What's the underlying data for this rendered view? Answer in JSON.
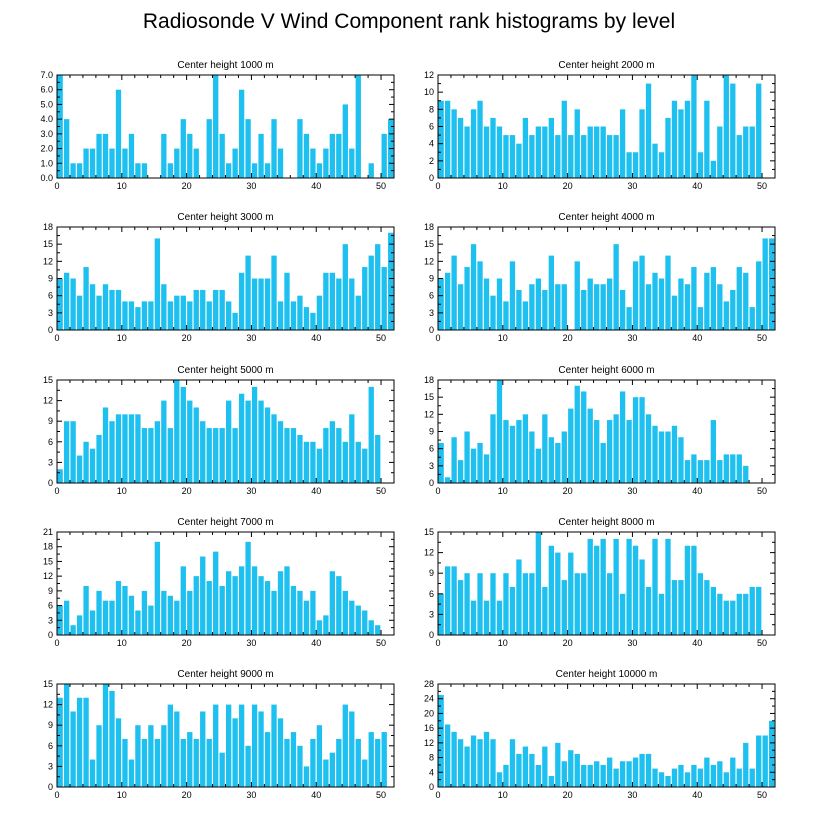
{
  "title": "Radiosonde V Wind Component rank histograms by level",
  "colors": {
    "bar": "#1ec0f0",
    "axis": "#000000"
  },
  "chart_data": [
    {
      "type": "bar",
      "title": "Center height 1000 m",
      "xlim": [
        0,
        52
      ],
      "xticks": [
        0,
        10,
        20,
        30,
        40,
        50
      ],
      "ylim": [
        0,
        7
      ],
      "yticks": [
        0.0,
        1.0,
        2.0,
        3.0,
        4.0,
        5.0,
        6.0,
        7.0
      ],
      "ytick_decimals": 1,
      "values": [
        7,
        4,
        1,
        1,
        2,
        2,
        3,
        3,
        2,
        6,
        2,
        3,
        1,
        1,
        0,
        0,
        3,
        1,
        2,
        4,
        3,
        2,
        0,
        4,
        7,
        3,
        1,
        2,
        6,
        4,
        1,
        3,
        1,
        4,
        2,
        0,
        0,
        4,
        3,
        2,
        1,
        2,
        3,
        3,
        5,
        2,
        7,
        0,
        1,
        0,
        3,
        4
      ]
    },
    {
      "type": "bar",
      "title": "Center height 2000 m",
      "xlim": [
        0,
        52
      ],
      "xticks": [
        0,
        10,
        20,
        30,
        40,
        50
      ],
      "ylim": [
        0,
        12
      ],
      "yticks": [
        0,
        2,
        4,
        6,
        8,
        10,
        12
      ],
      "ytick_decimals": 0,
      "values": [
        9,
        9,
        8,
        7,
        6,
        8,
        9,
        6,
        7,
        6,
        5,
        5,
        4,
        7,
        5,
        6,
        6,
        7,
        5,
        9,
        5,
        8,
        5,
        6,
        6,
        6,
        5,
        5,
        8,
        3,
        3,
        8,
        11,
        4,
        3,
        7,
        9,
        8,
        9,
        12,
        3,
        9,
        2,
        6,
        12,
        11,
        5,
        6,
        6,
        11
      ]
    },
    {
      "type": "bar",
      "title": "Center height 3000 m",
      "xlim": [
        0,
        52
      ],
      "xticks": [
        0,
        10,
        20,
        30,
        40,
        50
      ],
      "ylim": [
        0,
        18
      ],
      "yticks": [
        0,
        3,
        6,
        9,
        12,
        15,
        18
      ],
      "ytick_decimals": 0,
      "values": [
        9,
        10,
        9,
        6,
        11,
        8,
        6,
        8,
        7,
        7,
        5,
        5,
        4,
        5,
        5,
        16,
        8,
        5,
        6,
        6,
        5,
        7,
        7,
        5,
        7,
        7,
        5,
        3,
        10,
        13,
        9,
        9,
        9,
        13,
        5,
        10,
        5,
        6,
        4,
        3,
        6,
        10,
        10,
        9,
        15,
        9,
        6,
        11,
        13,
        15,
        11,
        17
      ]
    },
    {
      "type": "bar",
      "title": "Center height 4000 m",
      "xlim": [
        0,
        52
      ],
      "xticks": [
        0,
        10,
        20,
        30,
        40,
        50
      ],
      "ylim": [
        0,
        18
      ],
      "yticks": [
        0,
        3,
        6,
        9,
        12,
        15,
        18
      ],
      "ytick_decimals": 0,
      "values": [
        9,
        10,
        13,
        8,
        11,
        15,
        12,
        9,
        6,
        9,
        5,
        12,
        7,
        5,
        8,
        9,
        7,
        13,
        8,
        8,
        0,
        12,
        7,
        9,
        8,
        8,
        9,
        15,
        7,
        4,
        12,
        13,
        8,
        10,
        9,
        13,
        6,
        9,
        8,
        11,
        4,
        10,
        11,
        8,
        5,
        7,
        11,
        10,
        4,
        12,
        16,
        16
      ]
    },
    {
      "type": "bar",
      "title": "Center height 5000 m",
      "xlim": [
        0,
        52
      ],
      "xticks": [
        0,
        10,
        20,
        30,
        40,
        50
      ],
      "ylim": [
        0,
        15
      ],
      "yticks": [
        0,
        3,
        6,
        9,
        12,
        15
      ],
      "ytick_decimals": 0,
      "values": [
        2,
        9,
        9,
        4,
        6,
        5,
        7,
        11,
        9,
        10,
        10,
        10,
        10,
        8,
        8,
        9,
        12,
        8,
        15,
        14,
        12,
        11,
        9,
        8,
        8,
        8,
        12,
        8,
        13,
        12,
        14,
        12,
        11,
        10,
        9,
        8,
        8,
        7,
        6,
        6,
        5,
        8,
        9,
        8,
        6,
        10,
        6,
        5,
        14,
        7
      ]
    },
    {
      "type": "bar",
      "title": "Center height 6000 m",
      "xlim": [
        0,
        52
      ],
      "xticks": [
        0,
        10,
        20,
        30,
        40,
        50
      ],
      "ylim": [
        0,
        18
      ],
      "yticks": [
        0,
        3,
        6,
        9,
        12,
        15,
        18
      ],
      "ytick_decimals": 0,
      "values": [
        7,
        1,
        8,
        4,
        9,
        6,
        7,
        5,
        12,
        18,
        11,
        10,
        11,
        12,
        9,
        6,
        12,
        8,
        7,
        9,
        13,
        17,
        16,
        13,
        11,
        7,
        11,
        12,
        16,
        11,
        15,
        15,
        12,
        10,
        9,
        9,
        10,
        8,
        4,
        5,
        4,
        4,
        11,
        4,
        5,
        5,
        5,
        3
      ]
    },
    {
      "type": "bar",
      "title": "Center height 7000 m",
      "xlim": [
        0,
        52
      ],
      "xticks": [
        0,
        10,
        20,
        30,
        40,
        50
      ],
      "ylim": [
        0,
        21
      ],
      "yticks": [
        0,
        3,
        6,
        9,
        12,
        15,
        18,
        21
      ],
      "ytick_decimals": 0,
      "values": [
        6,
        7,
        2,
        4,
        10,
        5,
        9,
        7,
        7,
        11,
        10,
        8,
        5,
        9,
        6,
        19,
        9,
        8,
        7,
        14,
        9,
        12,
        16,
        11,
        17,
        10,
        13,
        12,
        14,
        19,
        14,
        12,
        11,
        9,
        13,
        14,
        10,
        9,
        7,
        9,
        3,
        4,
        13,
        12,
        9,
        7,
        6,
        5,
        3,
        2
      ]
    },
    {
      "type": "bar",
      "title": "Center height 8000 m",
      "xlim": [
        0,
        52
      ],
      "xticks": [
        0,
        10,
        20,
        30,
        40,
        50
      ],
      "ylim": [
        0,
        15
      ],
      "yticks": [
        0,
        3,
        6,
        9,
        12,
        15
      ],
      "ytick_decimals": 0,
      "values": [
        6,
        10,
        10,
        8,
        9,
        5,
        9,
        5,
        9,
        5,
        9,
        7,
        11,
        9,
        9,
        15,
        7,
        13,
        12,
        8,
        12,
        9,
        9,
        14,
        13,
        14,
        9,
        14,
        6,
        14,
        13,
        11,
        7,
        14,
        6,
        14,
        8,
        8,
        13,
        13,
        9,
        8,
        7,
        6,
        5,
        5,
        6,
        6,
        7,
        7
      ]
    },
    {
      "type": "bar",
      "title": "Center height 9000 m",
      "xlim": [
        0,
        52
      ],
      "xticks": [
        0,
        10,
        20,
        30,
        40,
        50
      ],
      "ylim": [
        0,
        15
      ],
      "yticks": [
        0,
        3,
        6,
        9,
        12,
        15
      ],
      "ytick_decimals": 0,
      "values": [
        13,
        15,
        11,
        13,
        13,
        4,
        9,
        15,
        14,
        10,
        7,
        4,
        9,
        7,
        9,
        7,
        9,
        12,
        11,
        7,
        8,
        7,
        11,
        7,
        12,
        5,
        12,
        10,
        12,
        6,
        12,
        11,
        8,
        12,
        10,
        7,
        8,
        6,
        3,
        7,
        9,
        4,
        5,
        7,
        12,
        11,
        7,
        4,
        8,
        7,
        8
      ]
    },
    {
      "type": "bar",
      "title": "Center height 10000 m",
      "xlim": [
        0,
        52
      ],
      "xticks": [
        0,
        10,
        20,
        30,
        40,
        50
      ],
      "ylim": [
        0,
        28
      ],
      "yticks": [
        0,
        4,
        8,
        12,
        16,
        20,
        24,
        28
      ],
      "ytick_decimals": 0,
      "values": [
        25,
        17,
        15,
        13,
        11,
        14,
        13,
        15,
        13,
        4,
        6,
        13,
        9,
        11,
        9,
        6,
        11,
        3,
        12,
        7,
        10,
        9,
        6,
        6,
        7,
        6,
        8,
        5,
        7,
        7,
        8,
        9,
        9,
        5,
        4,
        3,
        5,
        6,
        4,
        6,
        5,
        8,
        6,
        7,
        4,
        8,
        5,
        12,
        5,
        14,
        14,
        18
      ]
    }
  ]
}
